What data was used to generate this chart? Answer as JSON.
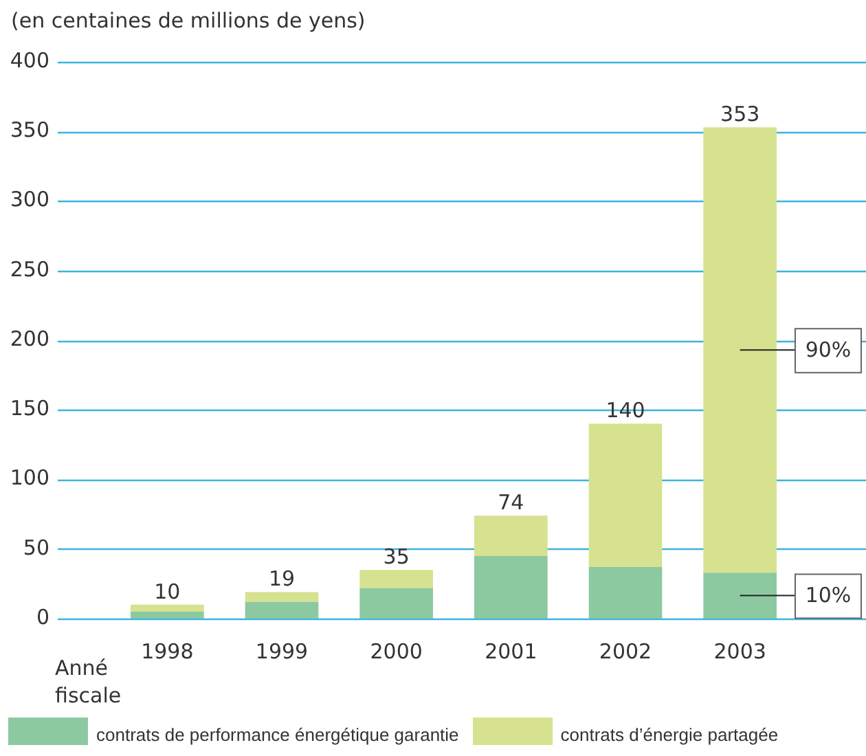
{
  "chart_data": {
    "type": "bar",
    "stacked": true,
    "ylabel": "(en centaines de millions de yens)",
    "xlabel": "Anné fiscale",
    "categories": [
      "1998",
      "1999",
      "2000",
      "2001",
      "2002",
      "2003"
    ],
    "series": [
      {
        "name": "contrats de performance énergétique garantie",
        "color": "#8cc9a0",
        "values": [
          5,
          12,
          22,
          45,
          37,
          33
        ]
      },
      {
        "name": "contrats d’énergie partagée",
        "color": "#d6e28f",
        "values": [
          5,
          7,
          13,
          29,
          103,
          320
        ]
      }
    ],
    "totals": [
      "10",
      "19",
      "35",
      "74",
      "140",
      "353"
    ],
    "annotations": [
      "90%",
      "10%"
    ],
    "ylim": [
      0,
      400
    ],
    "yticks": [
      0,
      50,
      100,
      150,
      200,
      250,
      300,
      350,
      400
    ],
    "grid": "y",
    "legend": "bottom"
  }
}
